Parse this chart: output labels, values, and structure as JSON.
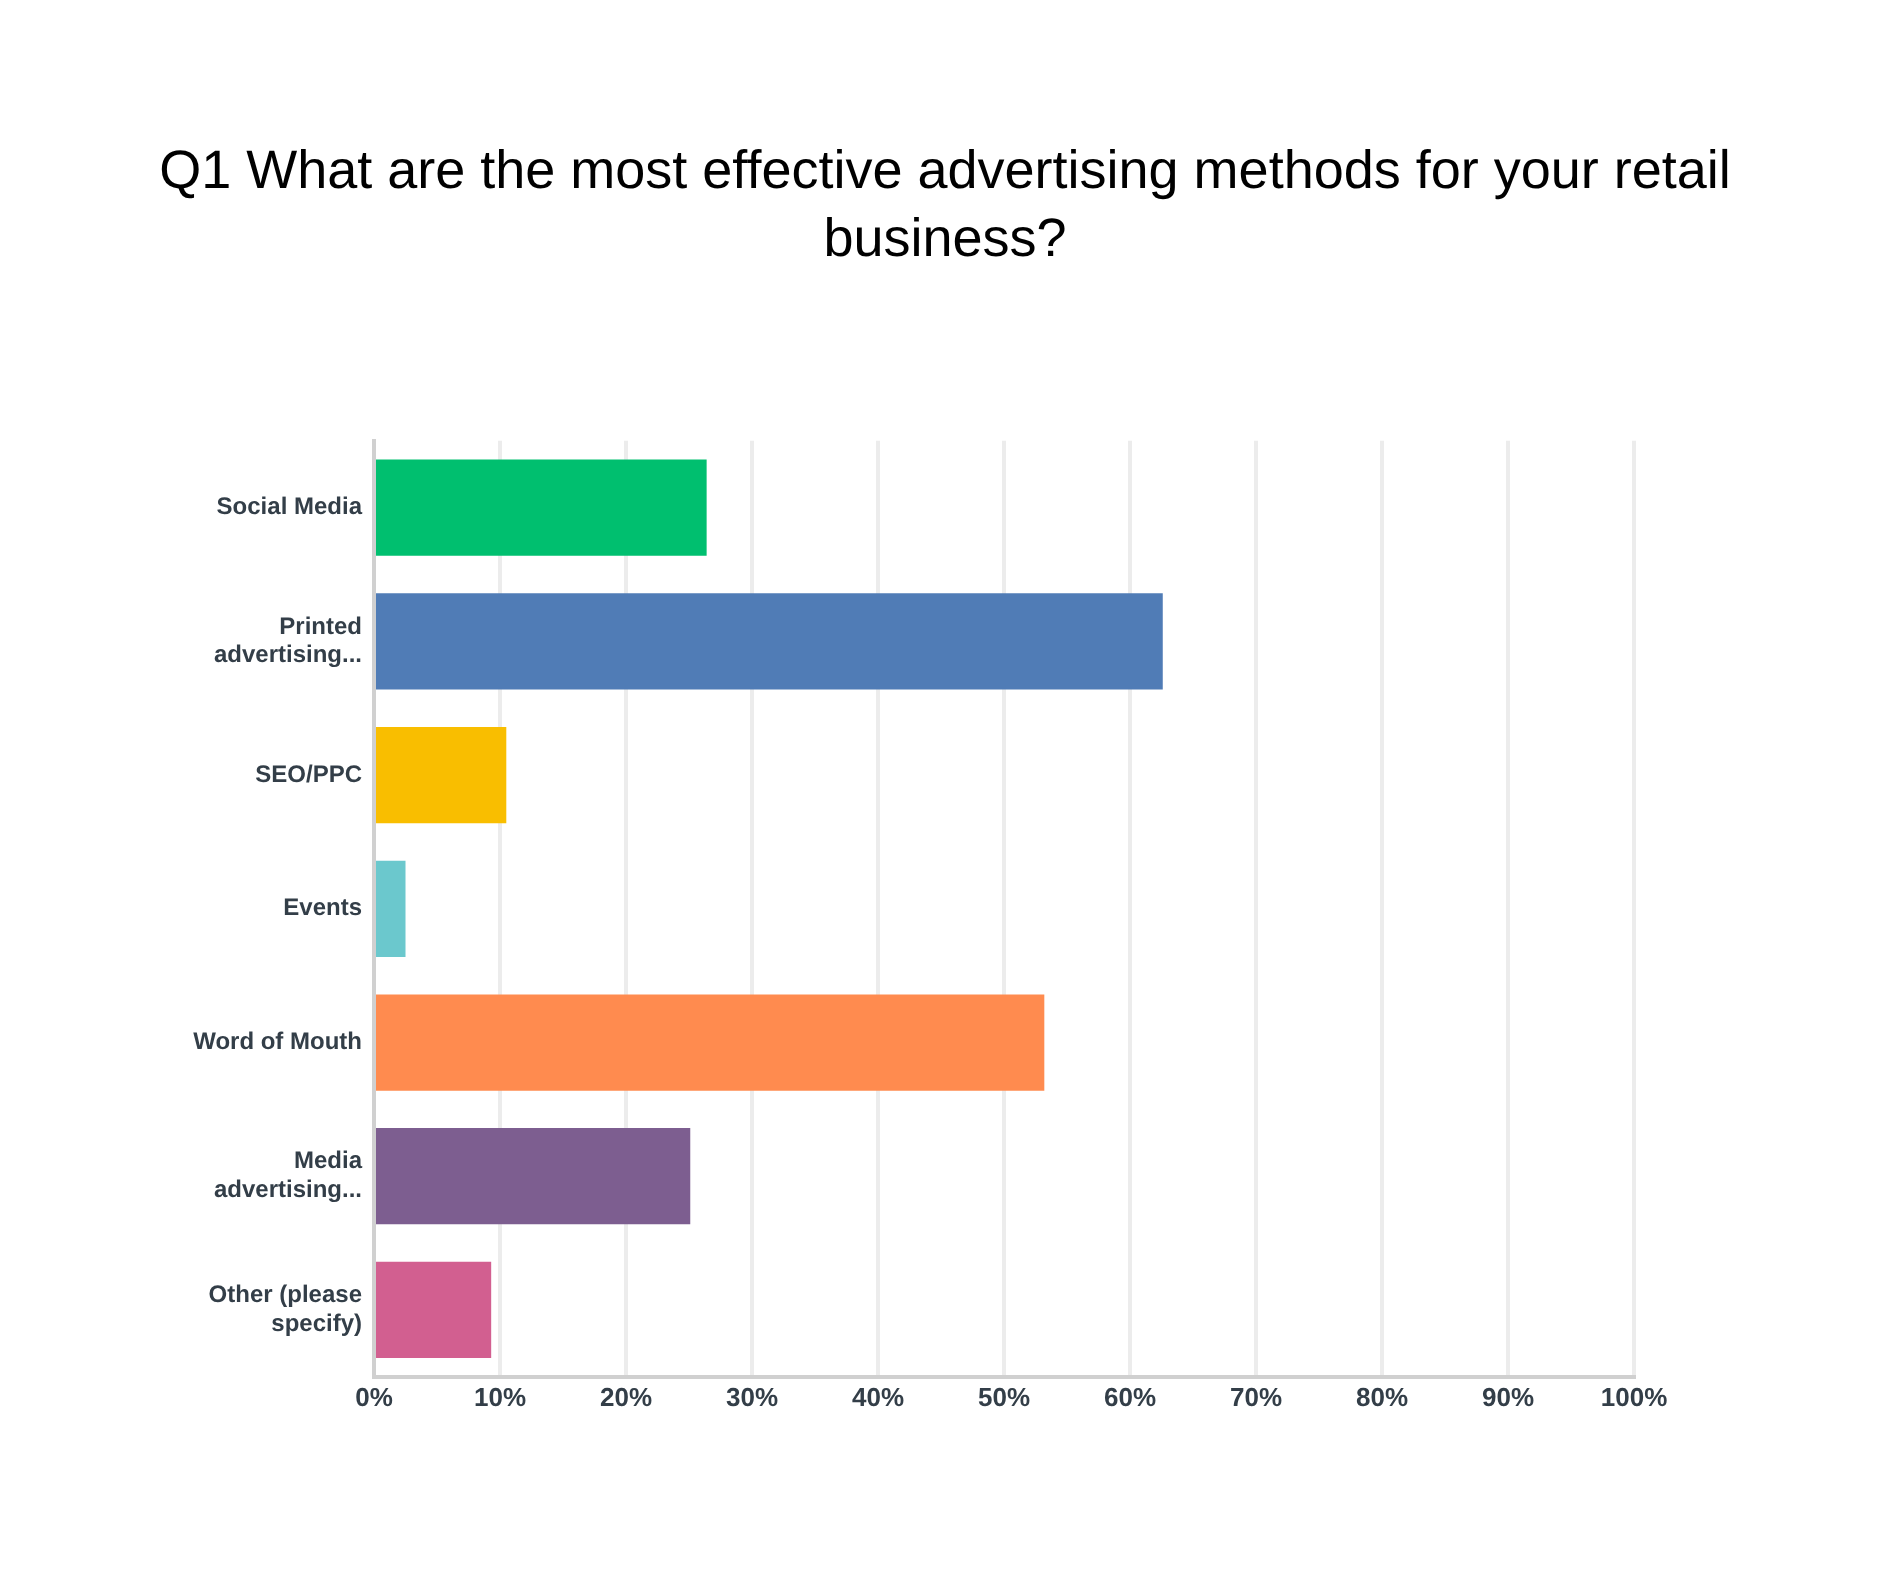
{
  "chart_data": {
    "type": "bar",
    "orientation": "horizontal",
    "title": "Q1 What are the most effective advertising methods for your retail business?",
    "categories": [
      "Social Media",
      "Printed advertising...",
      "SEO/PPC",
      "Events",
      "Word of Mouth",
      "Media advertising...",
      "Other (please specify)"
    ],
    "values": [
      26.4,
      62.6,
      10.5,
      2.5,
      53.2,
      25.1,
      9.3
    ],
    "colors": [
      "#00bf6f",
      "#507cb6",
      "#f9be00",
      "#6bc8cd",
      "#ff8b4f",
      "#7d5e90",
      "#d25f90"
    ],
    "xlim": [
      0,
      100
    ],
    "xticks": [
      {
        "value": 0,
        "label": "0%"
      },
      {
        "value": 10,
        "label": "10%"
      },
      {
        "value": 20,
        "label": "20%"
      },
      {
        "value": 30,
        "label": "30%"
      },
      {
        "value": 40,
        "label": "40%"
      },
      {
        "value": 50,
        "label": "50%"
      },
      {
        "value": 60,
        "label": "60%"
      },
      {
        "value": 70,
        "label": "70%"
      },
      {
        "value": 80,
        "label": "80%"
      },
      {
        "value": 90,
        "label": "90%"
      },
      {
        "value": 100,
        "label": "100%"
      }
    ],
    "grid": "x",
    "legend": false
  }
}
